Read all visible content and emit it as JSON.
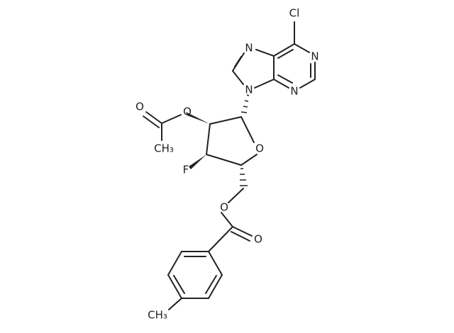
{
  "molecule": {
    "labels": [
      "Cl",
      "N",
      "N",
      "N",
      "N",
      "O",
      "O",
      "O",
      "CH₃",
      "F",
      "O",
      "O",
      "CH₃"
    ]
  }
}
